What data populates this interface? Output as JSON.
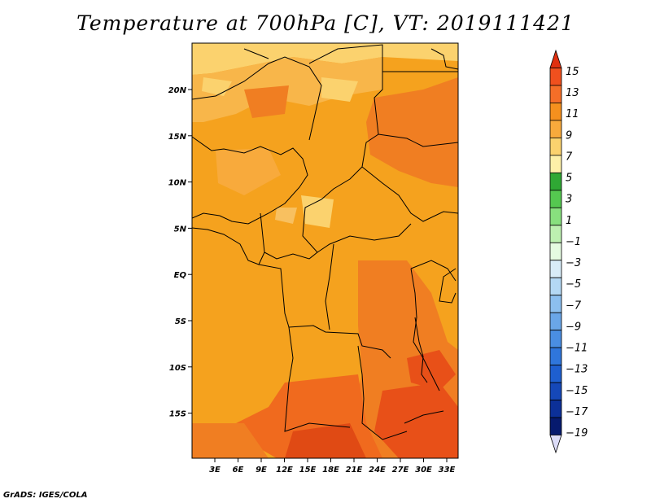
{
  "title": "Temperature at 700hPa [C], VT: 2019111421",
  "credit": "GrADS: IGES/COLA",
  "map": {
    "lat_ticks": [
      "20N",
      "15N",
      "10N",
      "5N",
      "EQ",
      "5S",
      "10S",
      "15S"
    ],
    "lon_ticks": [
      "3E",
      "6E",
      "9E",
      "12E",
      "15E",
      "18E",
      "21E",
      "24E",
      "27E",
      "30E",
      "33E"
    ]
  },
  "colorbar": {
    "labels": [
      "15",
      "13",
      "11",
      "9",
      "7",
      "5",
      "3",
      "1",
      "−1",
      "−3",
      "−5",
      "−7",
      "−9",
      "−11",
      "−13",
      "−15",
      "−17",
      "−19"
    ],
    "colors": [
      "#e03010",
      "#f0501e",
      "#f56e28",
      "#f5901e",
      "#f8aa3c",
      "#fbd26e",
      "#fdf0a8",
      "#2fa834",
      "#55c850",
      "#88e07e",
      "#bdf0b0",
      "#e5fbe0",
      "#d8ecf8",
      "#b4d8f4",
      "#8cbfef",
      "#6aa6e8",
      "#4a8ee2",
      "#2f76dc",
      "#1e5fd0",
      "#1548b8",
      "#0c3098",
      "#061a6e",
      "#dcdcf8"
    ]
  }
}
